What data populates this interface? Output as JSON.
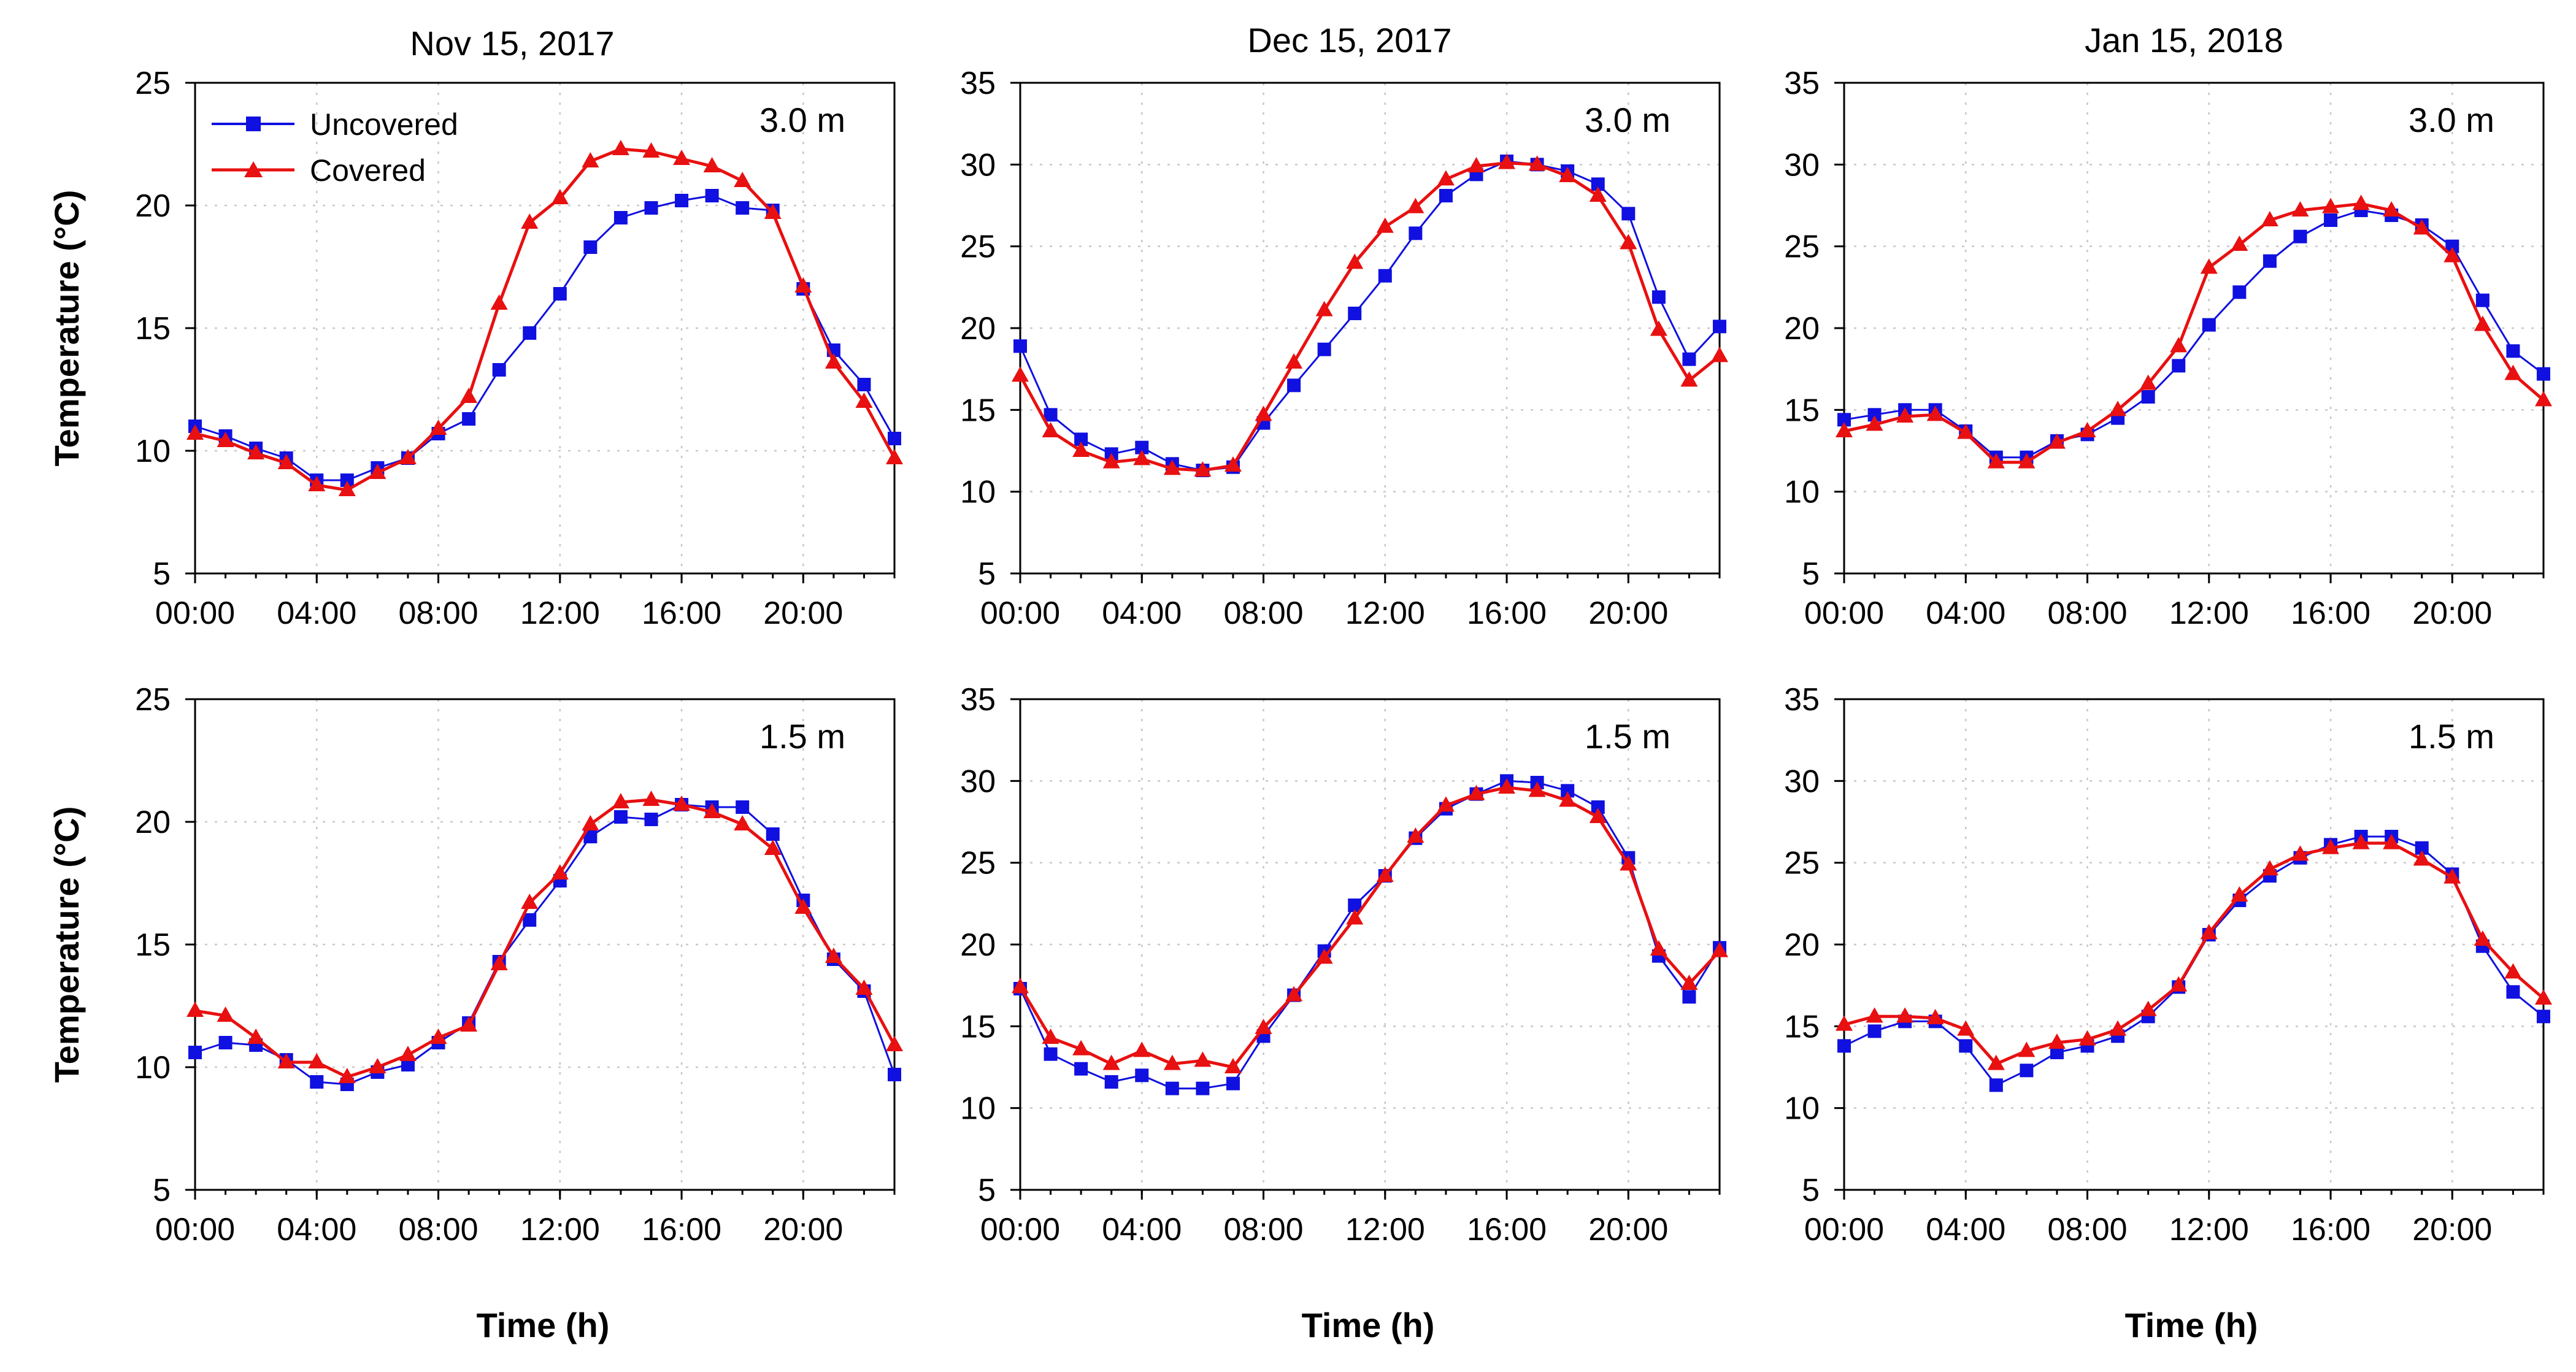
{
  "chart_data": {
    "type": "line",
    "ylabel": "Temperature (°C)",
    "xlabel": "Time (h)",
    "x_tick_labels": [
      "00:00",
      "04:00",
      "08:00",
      "12:00",
      "16:00",
      "20:00"
    ],
    "x_ticks_hours": [
      0,
      4,
      8,
      12,
      16,
      20
    ],
    "xlim": [
      0,
      23
    ],
    "legend": [
      {
        "name": "Uncovered",
        "color": "#1010e0",
        "marker": "square"
      },
      {
        "name": "Covered",
        "color": "#e81010",
        "marker": "triangle"
      }
    ],
    "panels": [
      {
        "title": "Nov 15, 2017",
        "depth": "3.0 m",
        "ylim": [
          5,
          25
        ],
        "yticks": [
          5,
          10,
          15,
          20,
          25
        ],
        "series": [
          {
            "name": "Uncovered",
            "x": [
              0,
              1,
              2,
              3,
              4,
              5,
              6,
              7,
              8,
              9,
              10,
              11,
              12,
              13,
              14,
              15,
              16,
              17,
              18,
              19,
              20,
              21,
              22,
              23
            ],
            "values": [
              11.0,
              10.6,
              10.1,
              9.7,
              8.8,
              8.8,
              9.3,
              9.7,
              10.7,
              11.3,
              13.3,
              14.8,
              16.4,
              18.3,
              19.5,
              19.9,
              20.2,
              20.4,
              19.9,
              19.8,
              16.6,
              14.1,
              12.7,
              10.5
            ]
          },
          {
            "name": "Covered",
            "x": [
              0,
              1,
              2,
              3,
              4,
              5,
              6,
              7,
              8,
              9,
              10,
              11,
              12,
              13,
              14,
              15,
              16,
              17,
              18,
              19,
              20,
              21,
              22,
              23
            ],
            "values": [
              10.7,
              10.4,
              9.9,
              9.5,
              8.6,
              8.4,
              9.1,
              9.7,
              10.9,
              12.2,
              16.0,
              19.3,
              20.3,
              21.8,
              22.3,
              22.2,
              21.9,
              21.6,
              21.0,
              19.7,
              16.7,
              13.6,
              12.0,
              9.7
            ]
          }
        ]
      },
      {
        "title": "Dec 15, 2017",
        "depth": "3.0 m",
        "ylim": [
          5,
          35
        ],
        "yticks": [
          5,
          10,
          15,
          20,
          25,
          30,
          35
        ],
        "series": [
          {
            "name": "Uncovered",
            "x": [
              0,
              1,
              2,
              3,
              4,
              5,
              6,
              7,
              8,
              9,
              10,
              11,
              12,
              13,
              14,
              15,
              16,
              17,
              18,
              19,
              20,
              21,
              22,
              23
            ],
            "values": [
              18.9,
              14.7,
              13.2,
              12.3,
              12.7,
              11.7,
              11.3,
              11.5,
              14.2,
              16.5,
              18.7,
              20.9,
              23.2,
              25.8,
              28.1,
              29.4,
              30.2,
              30.0,
              29.6,
              28.8,
              27.0,
              21.9,
              18.1,
              20.1
            ]
          },
          {
            "name": "Covered",
            "x": [
              0,
              1,
              2,
              3,
              4,
              5,
              6,
              7,
              8,
              9,
              10,
              11,
              12,
              13,
              14,
              15,
              16,
              17,
              18,
              19,
              20,
              21,
              22,
              23
            ],
            "values": [
              17.1,
              13.7,
              12.5,
              11.8,
              12.0,
              11.4,
              11.3,
              11.6,
              14.7,
              17.9,
              21.1,
              24.0,
              26.2,
              27.4,
              29.1,
              29.9,
              30.1,
              30.0,
              29.3,
              28.1,
              25.2,
              19.9,
              16.8,
              18.3
            ]
          }
        ]
      },
      {
        "title": "Jan 15, 2018",
        "depth": "3.0 m",
        "ylim": [
          5,
          35
        ],
        "yticks": [
          5,
          10,
          15,
          20,
          25,
          30,
          35
        ],
        "series": [
          {
            "name": "Uncovered",
            "x": [
              0,
              1,
              2,
              3,
              4,
              5,
              6,
              7,
              8,
              9,
              10,
              11,
              12,
              13,
              14,
              15,
              16,
              17,
              18,
              19,
              20,
              21,
              22,
              23
            ],
            "values": [
              14.4,
              14.7,
              15.0,
              15.0,
              13.7,
              12.1,
              12.1,
              13.1,
              13.5,
              14.5,
              15.8,
              17.7,
              20.2,
              22.2,
              24.1,
              25.6,
              26.6,
              27.2,
              26.9,
              26.3,
              25.0,
              21.7,
              18.6,
              17.2
            ]
          },
          {
            "name": "Covered",
            "x": [
              0,
              1,
              2,
              3,
              4,
              5,
              6,
              7,
              8,
              9,
              10,
              11,
              12,
              13,
              14,
              15,
              16,
              17,
              18,
              19,
              20,
              21,
              22,
              23
            ],
            "values": [
              13.7,
              14.1,
              14.6,
              14.7,
              13.6,
              11.8,
              11.8,
              13.0,
              13.7,
              15.0,
              16.6,
              18.9,
              23.7,
              25.1,
              26.6,
              27.2,
              27.4,
              27.6,
              27.2,
              26.1,
              24.4,
              20.2,
              17.2,
              15.6
            ]
          }
        ]
      },
      {
        "title": "",
        "depth": "1.5 m",
        "ylim": [
          5,
          25
        ],
        "yticks": [
          5,
          10,
          15,
          20,
          25
        ],
        "series": [
          {
            "name": "Uncovered",
            "x": [
              0,
              1,
              2,
              3,
              4,
              5,
              6,
              7,
              8,
              9,
              10,
              11,
              12,
              13,
              14,
              15,
              16,
              17,
              18,
              19,
              20,
              21,
              22,
              23
            ],
            "values": [
              10.6,
              11.0,
              10.9,
              10.3,
              9.4,
              9.3,
              9.8,
              10.1,
              11.0,
              11.8,
              14.3,
              16.0,
              17.6,
              19.4,
              20.2,
              20.1,
              20.7,
              20.6,
              20.6,
              19.5,
              16.8,
              14.4,
              13.1,
              9.7
            ]
          },
          {
            "name": "Covered",
            "x": [
              0,
              1,
              2,
              3,
              4,
              5,
              6,
              7,
              8,
              9,
              10,
              11,
              12,
              13,
              14,
              15,
              16,
              17,
              18,
              19,
              20,
              21,
              22,
              23
            ],
            "values": [
              12.3,
              12.1,
              11.2,
              10.2,
              10.2,
              9.6,
              10.0,
              10.5,
              11.2,
              11.7,
              14.2,
              16.7,
              17.9,
              19.9,
              20.8,
              20.9,
              20.7,
              20.4,
              19.9,
              18.9,
              16.5,
              14.5,
              13.2,
              10.9
            ]
          }
        ]
      },
      {
        "title": "",
        "depth": "1.5 m",
        "ylim": [
          5,
          35
        ],
        "yticks": [
          5,
          10,
          15,
          20,
          25,
          30,
          35
        ],
        "series": [
          {
            "name": "Uncovered",
            "x": [
              0,
              1,
              2,
              3,
              4,
              5,
              6,
              7,
              8,
              9,
              10,
              11,
              12,
              13,
              14,
              15,
              16,
              17,
              18,
              19,
              20,
              21,
              22,
              23
            ],
            "values": [
              17.3,
              13.3,
              12.4,
              11.6,
              12.0,
              11.2,
              11.2,
              11.5,
              14.4,
              16.9,
              19.6,
              22.4,
              24.2,
              26.5,
              28.3,
              29.2,
              30.0,
              29.9,
              29.4,
              28.4,
              25.3,
              19.3,
              16.8,
              19.8
            ]
          },
          {
            "name": "Covered",
            "x": [
              0,
              1,
              2,
              3,
              4,
              5,
              6,
              7,
              8,
              9,
              10,
              11,
              12,
              13,
              14,
              15,
              16,
              17,
              18,
              19,
              20,
              21,
              22,
              23
            ],
            "values": [
              17.4,
              14.3,
              13.6,
              12.7,
              13.5,
              12.7,
              12.9,
              12.5,
              14.9,
              16.9,
              19.2,
              21.6,
              24.2,
              26.6,
              28.5,
              29.2,
              29.6,
              29.4,
              28.8,
              27.8,
              24.9,
              19.7,
              17.6,
              19.6
            ]
          }
        ]
      },
      {
        "title": "",
        "depth": "1.5 m",
        "ylim": [
          5,
          35
        ],
        "yticks": [
          5,
          10,
          15,
          20,
          25,
          30,
          35
        ],
        "series": [
          {
            "name": "Uncovered",
            "x": [
              0,
              1,
              2,
              3,
              4,
              5,
              6,
              7,
              8,
              9,
              10,
              11,
              12,
              13,
              14,
              15,
              16,
              17,
              18,
              19,
              20,
              21,
              22,
              23
            ],
            "values": [
              13.8,
              14.7,
              15.3,
              15.3,
              13.8,
              11.4,
              12.3,
              13.4,
              13.8,
              14.4,
              15.6,
              17.4,
              20.6,
              22.7,
              24.2,
              25.3,
              26.1,
              26.6,
              26.6,
              25.9,
              24.3,
              19.9,
              17.1,
              15.6
            ]
          },
          {
            "name": "Covered",
            "x": [
              0,
              1,
              2,
              3,
              4,
              5,
              6,
              7,
              8,
              9,
              10,
              11,
              12,
              13,
              14,
              15,
              16,
              17,
              18,
              19,
              20,
              21,
              22,
              23
            ],
            "values": [
              15.1,
              15.6,
              15.6,
              15.5,
              14.8,
              12.7,
              13.5,
              14.0,
              14.2,
              14.8,
              16.0,
              17.5,
              20.7,
              23.0,
              24.6,
              25.5,
              25.9,
              26.2,
              26.2,
              25.2,
              24.1,
              20.3,
              18.3,
              16.7
            ]
          }
        ]
      }
    ]
  }
}
